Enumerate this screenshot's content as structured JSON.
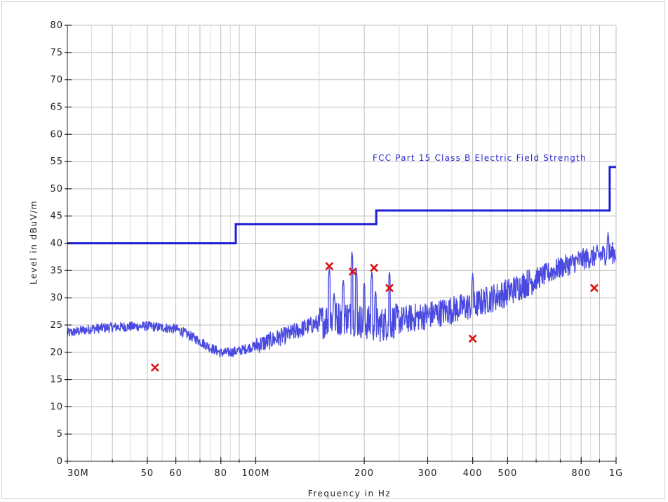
{
  "chart_data": {
    "type": "line",
    "title": "",
    "xlabel": "Frequency in Hz",
    "ylabel": "Level in dBuV/m",
    "x_scale": "log",
    "xlim": [
      30000000,
      1000000000
    ],
    "ylim": [
      0,
      80
    ],
    "grid": true,
    "y_ticks": [
      "0",
      "5",
      "10",
      "15",
      "20",
      "25",
      "30",
      "35",
      "40",
      "45",
      "50",
      "55",
      "60",
      "65",
      "70",
      "75",
      "80"
    ],
    "x_tick_labels": [
      {
        "value": 30000000,
        "label": "30M"
      },
      {
        "value": 50000000,
        "label": "50"
      },
      {
        "value": 60000000,
        "label": "60"
      },
      {
        "value": 80000000,
        "label": "80"
      },
      {
        "value": 100000000,
        "label": "100M"
      },
      {
        "value": 200000000,
        "label": "200"
      },
      {
        "value": 300000000,
        "label": "300"
      },
      {
        "value": 400000000,
        "label": "400"
      },
      {
        "value": 500000000,
        "label": "500"
      },
      {
        "value": 800000000,
        "label": "800"
      },
      {
        "value": 1000000000,
        "label": "1G"
      }
    ],
    "limit_line": {
      "name": "FCC Part 15 Class B Electric Field Strength",
      "color": "#1f1fd6",
      "points": [
        [
          30000000,
          40
        ],
        [
          88000000,
          40
        ],
        [
          88000000,
          43.5
        ],
        [
          216000000,
          43.5
        ],
        [
          216000000,
          46
        ],
        [
          960000000,
          46
        ],
        [
          960000000,
          54
        ],
        [
          1000000000,
          54
        ]
      ]
    },
    "spectrum": {
      "color": "#4a4ae0",
      "baseline": [
        [
          30000000,
          23.5
        ],
        [
          35000000,
          24.3
        ],
        [
          40000000,
          24.6
        ],
        [
          50000000,
          24.8
        ],
        [
          60000000,
          24.3
        ],
        [
          65000000,
          23.2
        ],
        [
          70000000,
          22.0
        ],
        [
          75000000,
          20.8
        ],
        [
          80000000,
          19.9
        ],
        [
          85000000,
          20.0
        ],
        [
          90000000,
          20.3
        ],
        [
          100000000,
          21.2
        ],
        [
          120000000,
          23.0
        ],
        [
          140000000,
          24.8
        ],
        [
          160000000,
          26.0
        ],
        [
          180000000,
          26.5
        ],
        [
          200000000,
          25.5
        ],
        [
          220000000,
          25.0
        ],
        [
          240000000,
          25.6
        ],
        [
          300000000,
          26.8
        ],
        [
          400000000,
          28.6
        ],
        [
          500000000,
          31.0
        ],
        [
          600000000,
          33.5
        ],
        [
          700000000,
          35.5
        ],
        [
          800000000,
          37.0
        ],
        [
          900000000,
          37.8
        ],
        [
          1000000000,
          38.3
        ]
      ],
      "peaks": [
        [
          160000000,
          35.5
        ],
        [
          165000000,
          31.0
        ],
        [
          175000000,
          33.5
        ],
        [
          185000000,
          38.5
        ],
        [
          190000000,
          35.5
        ],
        [
          200000000,
          33.0
        ],
        [
          210000000,
          35.0
        ],
        [
          215000000,
          31.5
        ],
        [
          235000000,
          35.0
        ],
        [
          400000000,
          34.5
        ],
        [
          950000000,
          42.0
        ]
      ]
    },
    "markers": {
      "color": "#e01010",
      "points": [
        [
          52500000,
          17.2
        ],
        [
          160000000,
          35.8
        ],
        [
          186000000,
          34.8
        ],
        [
          213000000,
          35.5
        ],
        [
          235000000,
          31.8
        ],
        [
          400000000,
          22.5
        ],
        [
          870000000,
          31.8
        ]
      ]
    }
  }
}
